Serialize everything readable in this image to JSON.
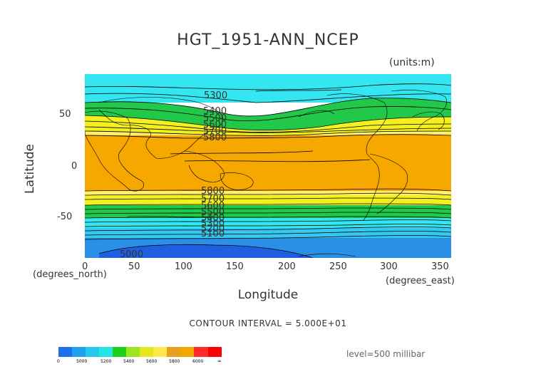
{
  "title": "HGT_1951-ANN_NCEP",
  "units": "(units:m)",
  "axes": {
    "ylabel": "Latitude",
    "xlabel": "Longitude",
    "y_ticks": [
      "50",
      "0",
      "-50"
    ],
    "x_ticks": [
      "0",
      "50",
      "100",
      "150",
      "200",
      "250",
      "300",
      "350"
    ],
    "x_note_left": "(degrees_north)",
    "x_note_right": "(degrees_east)"
  },
  "contour_interval": "CONTOUR INTERVAL = 5.000E+01",
  "level": "level=500 millibar",
  "contour_labels": [
    "5300",
    "5400",
    "5500",
    "5600",
    "5700",
    "5800",
    "5800",
    "5700",
    "5600",
    "5500",
    "5400",
    "5300",
    "5200",
    "5100",
    "5000"
  ],
  "colorbar": {
    "labels": [
      "0",
      "5000",
      "5200",
      "5400",
      "5600",
      "5800",
      "6000",
      "∞"
    ],
    "colors": [
      "#1e6fe8",
      "#1fa0e8",
      "#27c8ef",
      "#22e6e6",
      "#1ed01e",
      "#9be61e",
      "#e6e61e",
      "#ffe84a",
      "#e6a01e",
      "#f0a800",
      "#ff2a2a",
      "#ff0000"
    ]
  },
  "bands": {
    "deep_blue": "#1e5fe0",
    "blue": "#2a90e6",
    "light_blue": "#35c8f0",
    "cyan": "#33e6f0",
    "green": "#22c84a",
    "lime": "#a8e43c",
    "yellow": "#f4f020",
    "light_yellow": "#ffef6a",
    "orange": "#f7a800"
  }
}
